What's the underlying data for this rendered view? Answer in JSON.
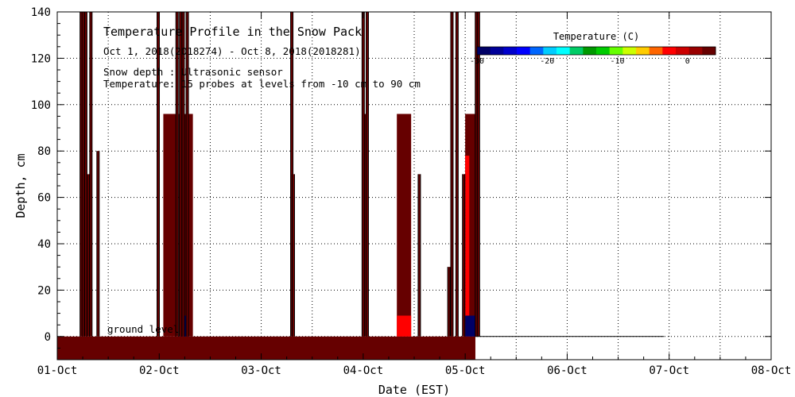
{
  "chart_data": {
    "type": "heatmap",
    "title": "Temperature Profile in the Snow Pack",
    "date_range": "Oct  1, 2018(2018274) - Oct  8, 2018(2018281)",
    "info_lines": [
      "Snow depth : Ultrasonic sensor",
      "Temperature: 15 probes at levels from -10 cm to 90 cm"
    ],
    "xlabel": "Date (EST)",
    "ylabel": "Depth, cm",
    "xlim": [
      0,
      7
    ],
    "ylim": [
      -10,
      140
    ],
    "x_ticks": [
      {
        "value": 0,
        "label": "01-Oct"
      },
      {
        "value": 1,
        "label": "02-Oct"
      },
      {
        "value": 2,
        "label": "03-Oct"
      },
      {
        "value": 3,
        "label": "04-Oct"
      },
      {
        "value": 4,
        "label": "05-Oct"
      },
      {
        "value": 5,
        "label": "06-Oct"
      },
      {
        "value": 6,
        "label": "07-Oct"
      },
      {
        "value": 7,
        "label": "08-Oct"
      }
    ],
    "y_ticks": [
      0,
      20,
      40,
      60,
      80,
      100,
      120,
      140
    ],
    "grid": true,
    "ground_label": "ground level",
    "colorbar": {
      "title": "Temperature (C)",
      "colors": [
        "#000066",
        "#000099",
        "#0000cc",
        "#0000ff",
        "#0066ff",
        "#00ccff",
        "#00ffff",
        "#00cc66",
        "#009900",
        "#00cc00",
        "#66ff00",
        "#ccff00",
        "#ffcc00",
        "#ff6600",
        "#ff0000",
        "#cc0000",
        "#990000",
        "#660000"
      ],
      "ticks": [
        {
          "value": -30,
          "label": "-30"
        },
        {
          "value": -20,
          "label": "-20"
        },
        {
          "value": -10,
          "label": "-10"
        },
        {
          "value": 0,
          "label": "0"
        }
      ],
      "range": [
        -30,
        4
      ]
    },
    "ground_band": {
      "x_start": 0,
      "x_end": 4.1,
      "y_bottom": -10,
      "y_top": 0,
      "color": "#660000"
    },
    "snow_depth_series": [
      {
        "x": 4.1,
        "y": 0
      },
      {
        "x": 5.95,
        "y": 0
      }
    ],
    "profile_columns": [
      {
        "x_start": 1.04,
        "x_end": 1.17,
        "depth": 96,
        "color": "#660000"
      },
      {
        "x_start": 1.19,
        "x_end": 1.33,
        "depth": 96,
        "color": "#660000"
      },
      {
        "x_start": 3.0,
        "x_end": 3.05,
        "depth": 96,
        "color": "#660000"
      },
      {
        "x_start": 3.33,
        "x_end": 3.47,
        "depth": 96,
        "color": "#660000"
      },
      {
        "x_start": 3.33,
        "x_end": 3.47,
        "depth": 9,
        "color": "#ff0000"
      },
      {
        "x_start": 4.0,
        "x_end": 4.1,
        "depth": 96,
        "color": "#660000"
      },
      {
        "x_start": 4.0,
        "x_end": 4.04,
        "depth": 78,
        "color": "#ff0000"
      },
      {
        "x_start": 4.0,
        "x_end": 4.1,
        "depth": 9,
        "color": "#000066"
      },
      {
        "x_start": 1.2,
        "x_end": 1.29,
        "depth": 9,
        "color": "#000066"
      }
    ],
    "spike_columns": [
      {
        "x": 0.235,
        "height": 140
      },
      {
        "x": 0.255,
        "height": 140
      },
      {
        "x": 0.28,
        "height": 140
      },
      {
        "x": 0.305,
        "height": 70
      },
      {
        "x": 0.33,
        "height": 140
      },
      {
        "x": 0.4,
        "height": 80
      },
      {
        "x": 0.99,
        "height": 140
      },
      {
        "x": 1.175,
        "height": 140
      },
      {
        "x": 1.21,
        "height": 140
      },
      {
        "x": 1.235,
        "height": 140
      },
      {
        "x": 1.275,
        "height": 140
      },
      {
        "x": 2.3,
        "height": 140
      },
      {
        "x": 2.315,
        "height": 70
      },
      {
        "x": 3.0,
        "height": 140
      },
      {
        "x": 3.04,
        "height": 140
      },
      {
        "x": 3.55,
        "height": 70
      },
      {
        "x": 3.84,
        "height": 30
      },
      {
        "x": 3.87,
        "height": 140
      },
      {
        "x": 3.92,
        "height": 140
      },
      {
        "x": 3.985,
        "height": 70
      },
      {
        "x": 4.11,
        "height": 140
      },
      {
        "x": 4.13,
        "height": 140
      }
    ]
  }
}
